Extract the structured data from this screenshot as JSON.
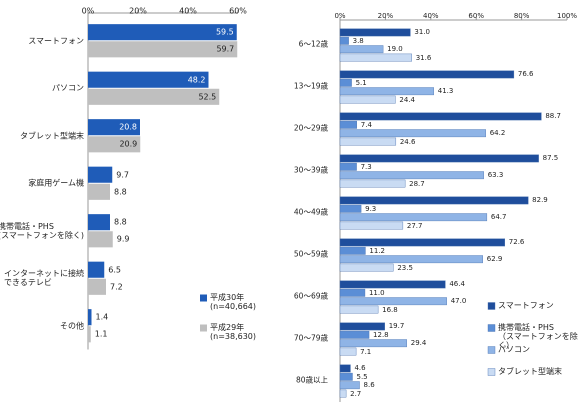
{
  "chart_data": [
    {
      "type": "bar",
      "orientation": "horizontal",
      "axis_side": "top",
      "grid": false,
      "legend_position": "bottom-right",
      "categories": [
        "スマートフォン",
        "パソコン",
        "タブレット型端末",
        "家庭用ゲーム機",
        "携帯電話・PHS\n(スマートフォンを除く)",
        "インターネットに接続\nできるテレビ",
        "その他"
      ],
      "series": [
        {
          "name": "平成30年\n(n=40,664)",
          "color": "#1f5cb8",
          "values": [
            59.5,
            48.2,
            20.8,
            9.7,
            8.8,
            6.5,
            1.4
          ]
        },
        {
          "name": "平成29年\n(n=38,630)",
          "color": "#bfbfbf",
          "values": [
            59.7,
            52.5,
            20.9,
            8.8,
            9.9,
            7.2,
            1.1
          ]
        }
      ],
      "xlim": [
        0,
        60
      ],
      "xticks": [
        {
          "value": 0,
          "label": "0%"
        },
        {
          "value": 20,
          "label": "20%"
        },
        {
          "value": 40,
          "label": "40%"
        },
        {
          "value": 60,
          "label": "60%"
        }
      ]
    },
    {
      "type": "bar",
      "orientation": "horizontal",
      "axis_side": "top",
      "grid": false,
      "legend_position": "bottom-right",
      "categories": [
        "6～12歳",
        "13～19歳",
        "20～29歳",
        "30～39歳",
        "40～49歳",
        "50～59歳",
        "60～69歳",
        "70～79歳",
        "80歳以上"
      ],
      "series": [
        {
          "name": "スマートフォン",
          "color": "#1f4e9c",
          "values": [
            31.0,
            76.6,
            88.7,
            87.5,
            82.9,
            72.6,
            46.4,
            19.7,
            4.6
          ],
          "value_labels": [
            "31.0",
            "76.6",
            "88.7",
            "87.5",
            "82.9",
            "72.6",
            "46.4",
            "19.7",
            "4.6"
          ]
        },
        {
          "name": "携帯電話・PHS\n（スマートフォンを除く）",
          "color": "#5b8ed6",
          "values": [
            3.8,
            5.1,
            7.4,
            7.3,
            9.3,
            11.2,
            11.0,
            12.8,
            5.5
          ],
          "value_labels": [
            "3.8",
            "5.1",
            "7.4",
            "7.3",
            "9.3",
            "11.2",
            "11.0",
            "12.8",
            "5.5"
          ]
        },
        {
          "name": "パソコン",
          "color": "#8fb4e6",
          "values": [
            19.0,
            41.3,
            64.2,
            63.3,
            64.7,
            62.9,
            47.0,
            29.4,
            8.6
          ],
          "value_labels": [
            "19.0",
            "41.3",
            "64.2",
            "63.3",
            "64.7",
            "62.9",
            "47.0",
            "29.4",
            "8.6"
          ]
        },
        {
          "name": "タブレット型端末",
          "color": "#c9dbf3",
          "values": [
            31.6,
            24.4,
            24.6,
            28.7,
            27.7,
            23.5,
            16.8,
            7.1,
            2.7
          ],
          "value_labels": [
            "31.6",
            "24.4",
            "24.6",
            "28.7",
            "27.7",
            "23.5",
            "16.8",
            "7.1",
            "2.7"
          ]
        }
      ],
      "xlim": [
        0,
        100
      ],
      "xticks": [
        {
          "value": 0,
          "label": "0%"
        },
        {
          "value": 20,
          "label": "20%"
        },
        {
          "value": 40,
          "label": "40%"
        },
        {
          "value": 60,
          "label": "60%"
        },
        {
          "value": 80,
          "label": "80%"
        },
        {
          "value": 100,
          "label": "100%"
        }
      ]
    }
  ]
}
